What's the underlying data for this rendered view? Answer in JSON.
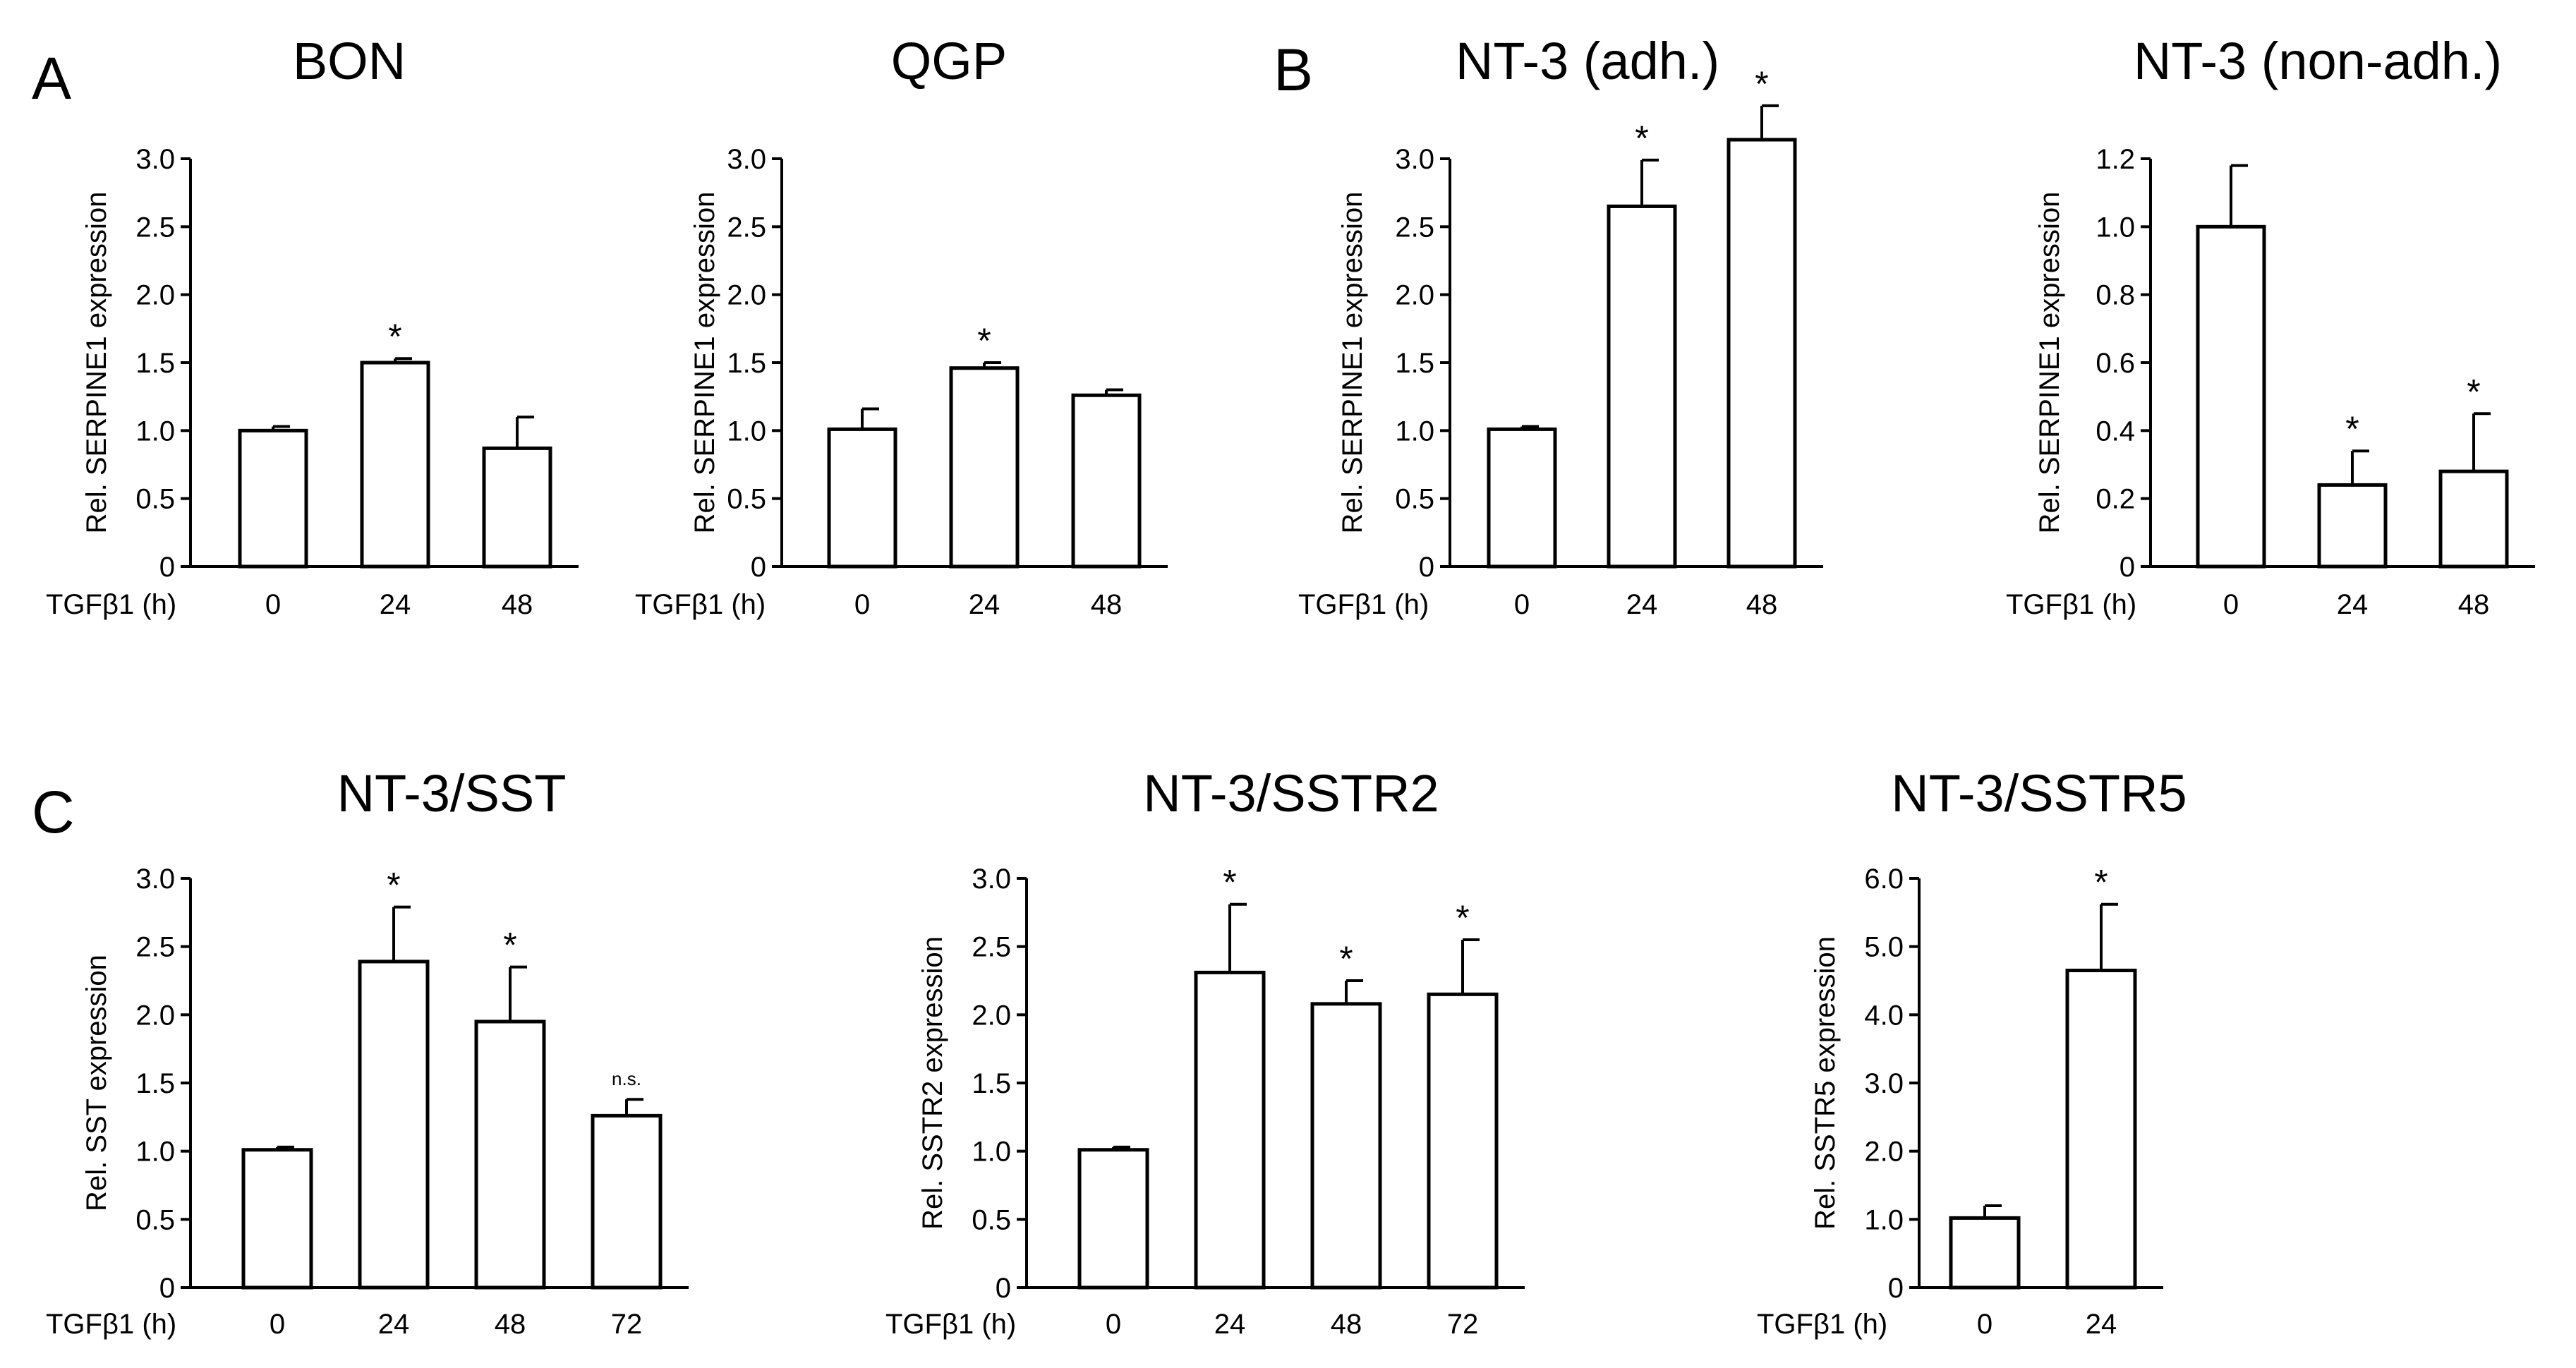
{
  "panel_letters": [
    "A",
    "B",
    "C"
  ],
  "chart_data": [
    {
      "type": "bar",
      "panel": "A",
      "title": "BON",
      "ylabel": "Rel. SERPINE1 expression",
      "xlabel": "TGFβ1 (h)",
      "categories": [
        "0",
        "24",
        "48"
      ],
      "values": [
        1.0,
        1.5,
        0.87
      ],
      "errors": [
        0.03,
        0.03,
        0.23
      ],
      "significance": [
        "",
        "*",
        ""
      ],
      "ylim": [
        0,
        3.0
      ],
      "yticks": [
        "0",
        "0.5",
        "1.0",
        "1.5",
        "2.0",
        "2.5",
        "3.0"
      ]
    },
    {
      "type": "bar",
      "panel": "A",
      "title": "QGP",
      "ylabel": "Rel. SERPINE1 expression",
      "xlabel": "TGFβ1 (h)",
      "categories": [
        "0",
        "24",
        "48"
      ],
      "values": [
        1.01,
        1.46,
        1.26
      ],
      "errors": [
        0.15,
        0.04,
        0.04
      ],
      "significance": [
        "",
        "*",
        ""
      ],
      "ylim": [
        0,
        3.0
      ],
      "yticks": [
        "0",
        "0.5",
        "1.0",
        "1.5",
        "2.0",
        "2.5",
        "3.0"
      ]
    },
    {
      "type": "bar",
      "panel": "B",
      "title": "NT-3 (adh.)",
      "ylabel": "Rel. SERPINE1 expression",
      "xlabel": "TGFβ1 (h)",
      "categories": [
        "0",
        "24",
        "48"
      ],
      "values": [
        1.01,
        2.65,
        3.14
      ],
      "errors": [
        0.02,
        0.34,
        0.25
      ],
      "significance": [
        "",
        "*",
        "*"
      ],
      "ylim": [
        0,
        3.0
      ],
      "yticks": [
        "0",
        "0.5",
        "1.0",
        "1.5",
        "2.0",
        "2.5",
        "3.0"
      ]
    },
    {
      "type": "bar",
      "panel": "B",
      "title": "NT-3 (non-adh.)",
      "ylabel": "Rel. SERPINE1 expression",
      "xlabel": "TGFβ1 (h)",
      "categories": [
        "0",
        "24",
        "48"
      ],
      "values": [
        1.0,
        0.24,
        0.28
      ],
      "errors": [
        0.18,
        0.1,
        0.17
      ],
      "significance": [
        "",
        "*",
        "*"
      ],
      "ylim": [
        0,
        1.2
      ],
      "yticks": [
        "0",
        "0.2",
        "0.4",
        "0.6",
        "0.8",
        "1.0",
        "1.2"
      ]
    },
    {
      "type": "bar",
      "panel": "C",
      "title": "NT-3/SST",
      "ylabel": "Rel. SST expression",
      "xlabel": "TGFβ1 (h)",
      "categories": [
        "0",
        "24",
        "48",
        "72"
      ],
      "values": [
        1.01,
        2.39,
        1.95,
        1.26
      ],
      "errors": [
        0.02,
        0.4,
        0.4,
        0.12
      ],
      "significance": [
        "",
        "*",
        "*",
        "n.s."
      ],
      "ylim": [
        0,
        3.0
      ],
      "yticks": [
        "0",
        "0.5",
        "1.0",
        "1.5",
        "2.0",
        "2.5",
        "3.0"
      ]
    },
    {
      "type": "bar",
      "panel": "C",
      "title": "NT-3/SSTR2",
      "ylabel": "Rel. SSTR2 expression",
      "xlabel": "TGFβ1 (h)",
      "categories": [
        "0",
        "24",
        "48",
        "72"
      ],
      "values": [
        1.01,
        2.31,
        2.08,
        2.15
      ],
      "errors": [
        0.02,
        0.5,
        0.17,
        0.4
      ],
      "significance": [
        "",
        "*",
        "*",
        "*"
      ],
      "ylim": [
        0,
        3.0
      ],
      "yticks": [
        "0",
        "0.5",
        "1.0",
        "1.5",
        "2.0",
        "2.5",
        "3.0"
      ]
    },
    {
      "type": "bar",
      "panel": "C",
      "title": "NT-3/SSTR5",
      "ylabel": "Rel. SSTR5 expression",
      "xlabel": "TGFβ1 (h)",
      "categories": [
        "0",
        "24"
      ],
      "values": [
        1.02,
        4.65
      ],
      "errors": [
        0.18,
        0.97
      ],
      "significance": [
        "",
        "*"
      ],
      "ylim": [
        0,
        6.0
      ],
      "yticks": [
        "0",
        "1.0",
        "2.0",
        "3.0",
        "4.0",
        "5.0",
        "6.0"
      ]
    }
  ]
}
